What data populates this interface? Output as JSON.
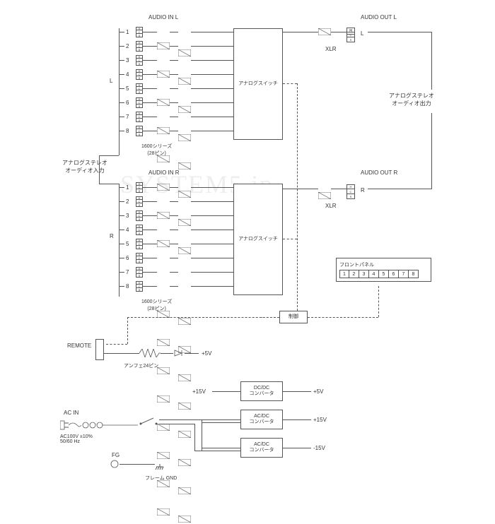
{
  "headers": {
    "audio_in_l": "AUDIO IN L",
    "audio_in_r": "AUDIO IN R",
    "audio_out_l": "AUDIO OUT L",
    "audio_out_r": "AUDIO OUT R"
  },
  "channels": [
    "1",
    "2",
    "3",
    "4",
    "5",
    "6",
    "7",
    "8"
  ],
  "hcs": [
    "H",
    "C",
    "S"
  ],
  "side_l": "L",
  "side_r": "R",
  "output_l": "L",
  "output_r": "R",
  "xlr": "XLR",
  "analog_switch": "アナログスイッチ",
  "input_desc": "アナログステレオ\nオーディオ入力",
  "output_desc": "アナログステレオ\nオーディオ出力",
  "series": "1600シリーズ\n(28ピン)",
  "front_panel": "フロントパネル",
  "panel_nums": [
    "1",
    "2",
    "3",
    "4",
    "5",
    "6",
    "7",
    "8"
  ],
  "control": "制御",
  "remote": "REMOTE",
  "remote_pin": "アンフェ24ピン",
  "plus5v": "+5V",
  "dc_dc": "DC/DC\nコンバータ",
  "ac_dc": "AC/DC\nコンバータ",
  "plus15v": "+15V",
  "minus15v": "-15V",
  "ac_in": "AC IN",
  "ac_spec": "AC100V ±10%\n50/60 Hz",
  "fg": "FG",
  "frame_gnd": "フレーム GND",
  "watermark": "SYSTEM5.jp",
  "colors": {
    "line": "#555",
    "bg": "#fff"
  }
}
